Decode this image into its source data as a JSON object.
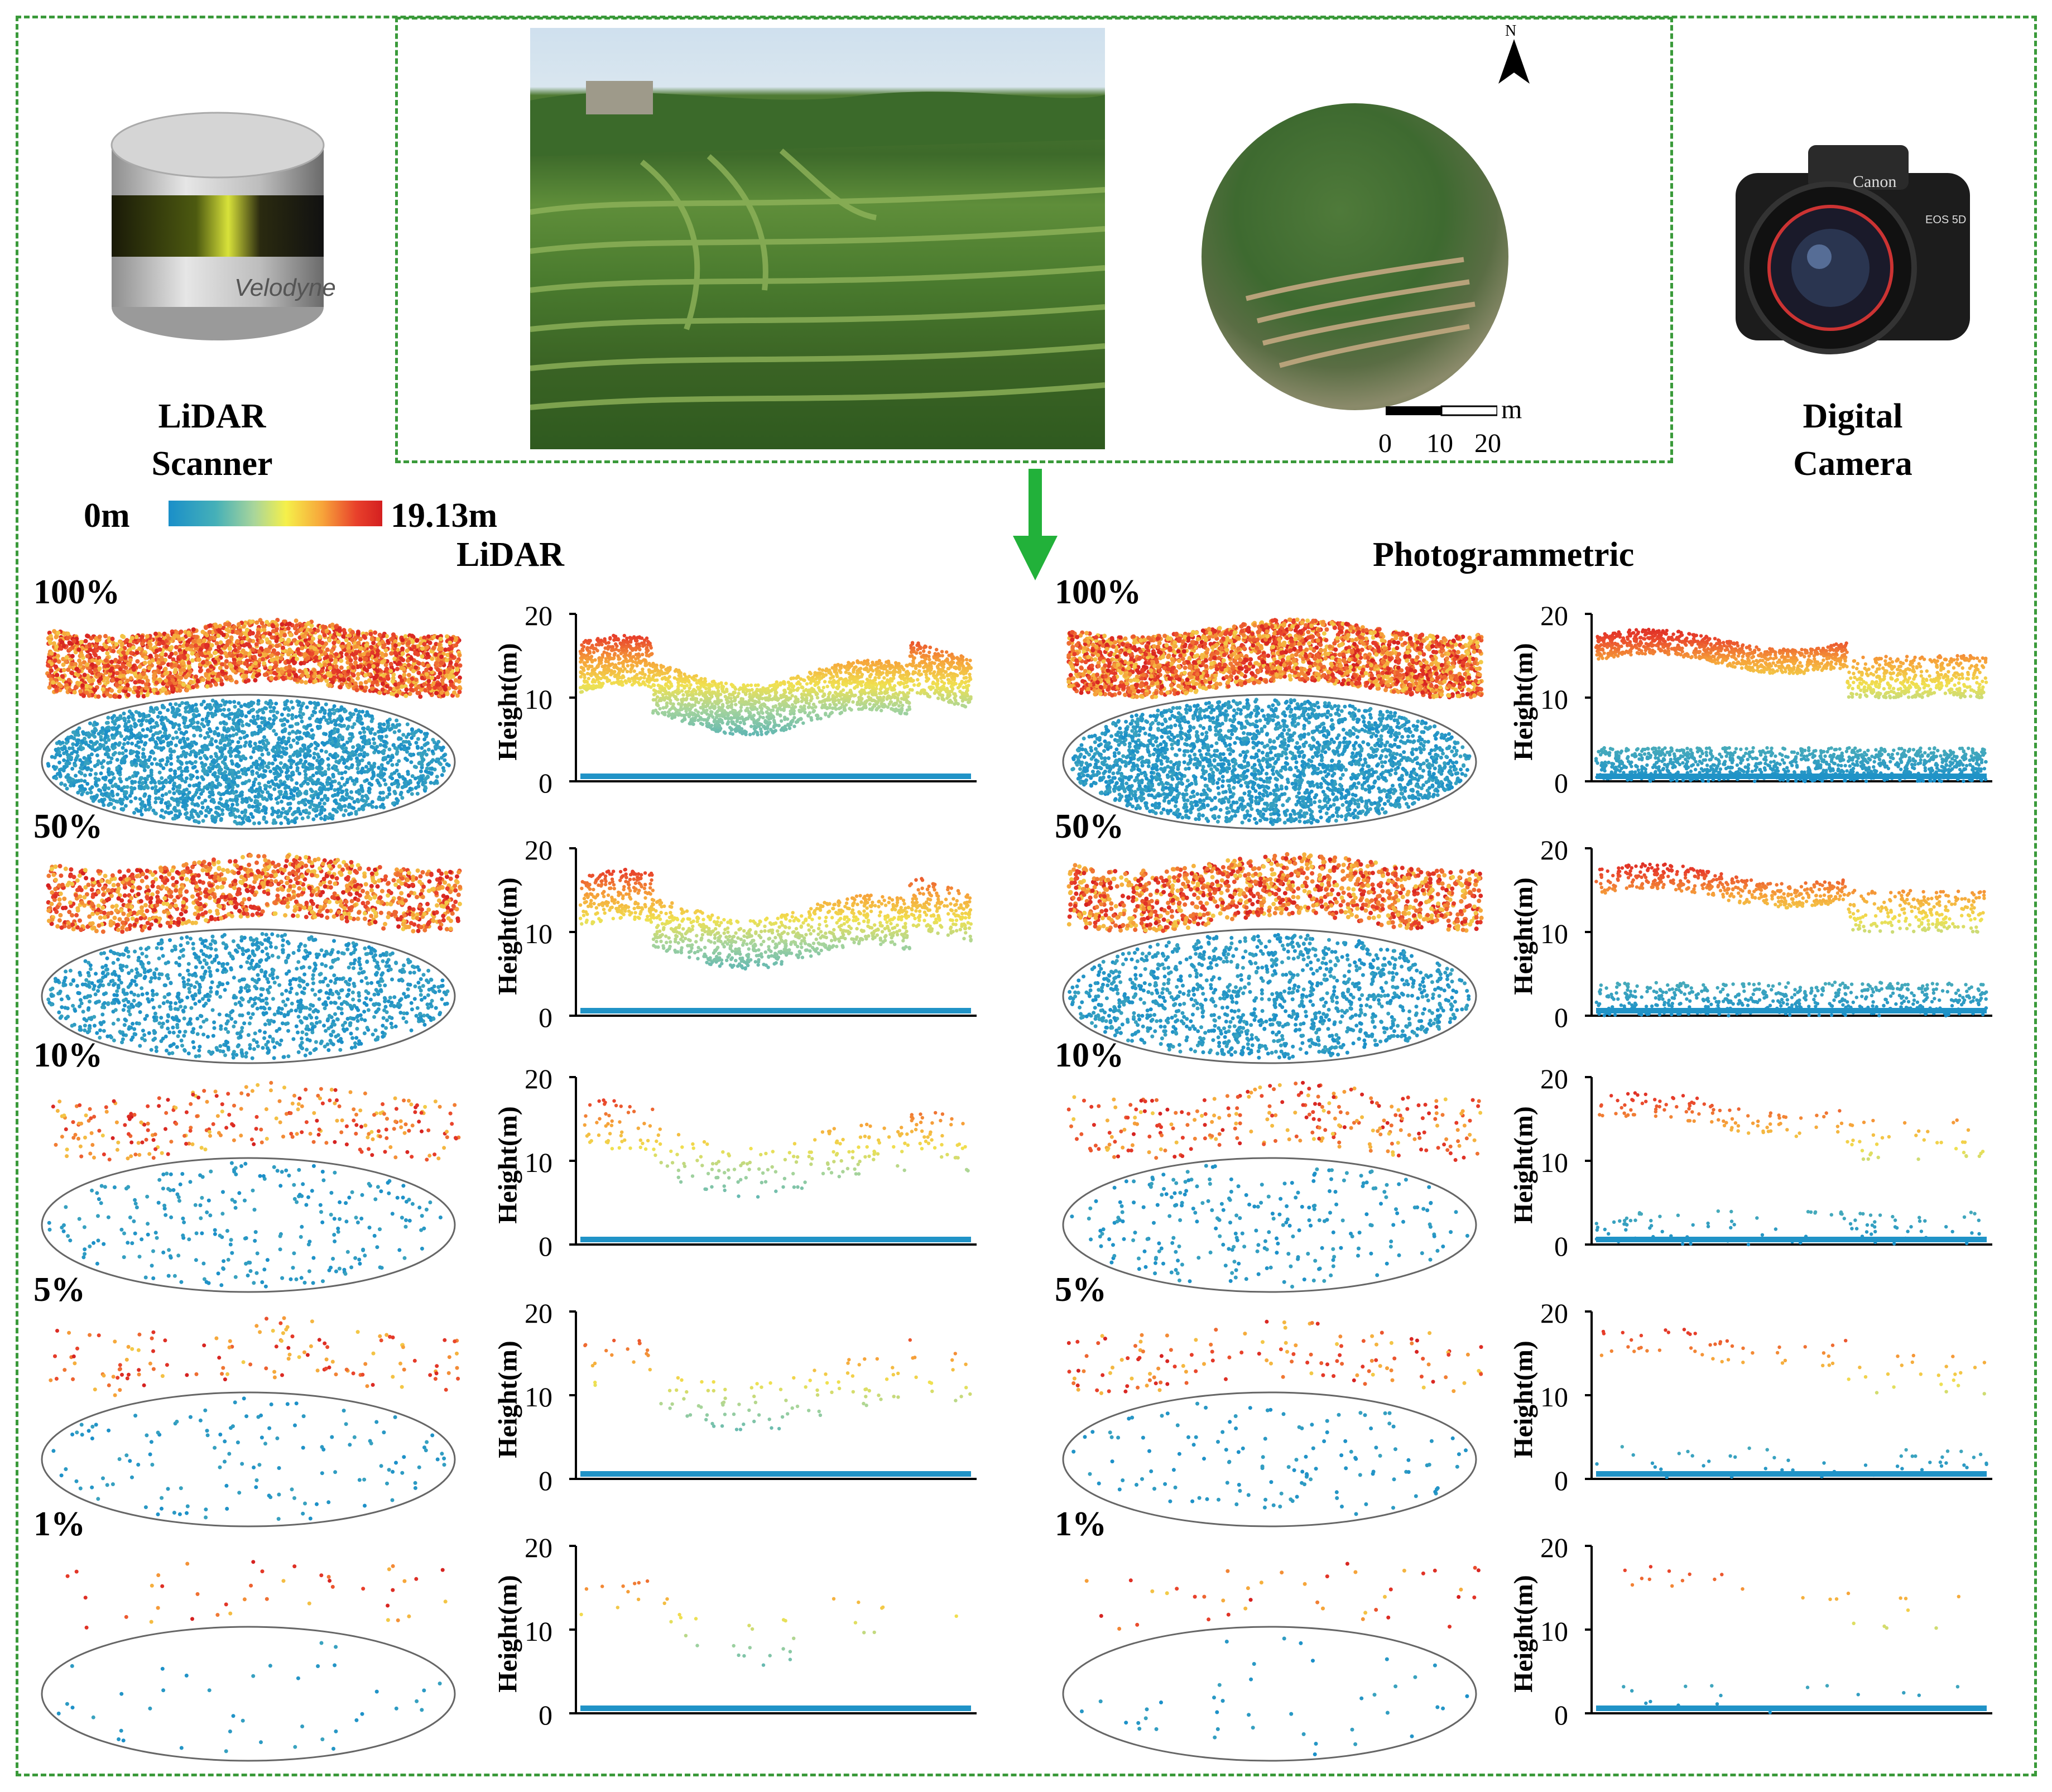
{
  "header": {
    "lidar_label_1": "LiDAR",
    "lidar_label_2": "Scanner",
    "camera_label_1": "Digital",
    "camera_label_2": "Camera",
    "scanner_brand": "Velodyne",
    "camera_brand": "Canon",
    "camera_model": "EOS 5D",
    "north": "N",
    "scale_unit": "m",
    "scale_ticks": [
      "0",
      "10",
      "20"
    ]
  },
  "colorbar": {
    "min_label": "0m",
    "max_label": "19.13m"
  },
  "columns": {
    "lidar": "LiDAR",
    "photo": "Photogrammetric"
  },
  "axis": {
    "ylabel": "Height(m)",
    "ticks": [
      "20",
      "10",
      "0"
    ]
  },
  "rows": [
    {
      "percent": "100%",
      "density": 1.0
    },
    {
      "percent": "50%",
      "density": 0.5
    },
    {
      "percent": "10%",
      "density": 0.1
    },
    {
      "percent": "5%",
      "density": 0.05
    },
    {
      "percent": "1%",
      "density": 0.01
    }
  ],
  "colors": {
    "frame": "#3a9a3a",
    "arrow": "#22b13a",
    "ground": "#1a8fc9",
    "high": "#e8402b"
  }
}
